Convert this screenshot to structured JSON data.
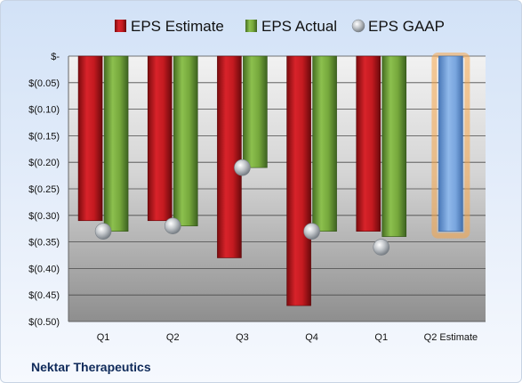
{
  "company": "Nektar Therapeutics",
  "chart_data": {
    "type": "bar",
    "title": "",
    "xlabel": "",
    "ylabel": "",
    "categories": [
      "Q1",
      "Q2",
      "Q3",
      "Q4",
      "Q1",
      "Q2 Estimate"
    ],
    "series": [
      {
        "name": "EPS Estimate",
        "kind": "bar",
        "color": "#c0161a",
        "values": [
          -0.31,
          -0.31,
          -0.38,
          -0.47,
          -0.33,
          null
        ]
      },
      {
        "name": "EPS Actual",
        "kind": "bar",
        "color": "#6fa03a",
        "values": [
          -0.33,
          -0.32,
          -0.21,
          -0.33,
          -0.34,
          null
        ]
      },
      {
        "name": "EPS GAAP",
        "kind": "marker",
        "color": "#a8b0b8",
        "values": [
          -0.33,
          -0.32,
          -0.21,
          -0.33,
          -0.36,
          null
        ]
      }
    ],
    "estimate_bar": {
      "category": "Q2 Estimate",
      "value": -0.33,
      "color": "#6e9fd8",
      "glow": "#f5a54a"
    },
    "ylim": [
      -0.5,
      0
    ],
    "yticks": [
      0,
      -0.05,
      -0.1,
      -0.15,
      -0.2,
      -0.25,
      -0.3,
      -0.35,
      -0.4,
      -0.45,
      -0.5
    ],
    "ytick_labels": [
      "$-",
      "$(0.05)",
      "$(0.10)",
      "$(0.15)",
      "$(0.20)",
      "$(0.25)",
      "$(0.30)",
      "$(0.35)",
      "$(0.40)",
      "$(0.45)",
      "$(0.50)"
    ],
    "grid": true,
    "legend": "top"
  }
}
